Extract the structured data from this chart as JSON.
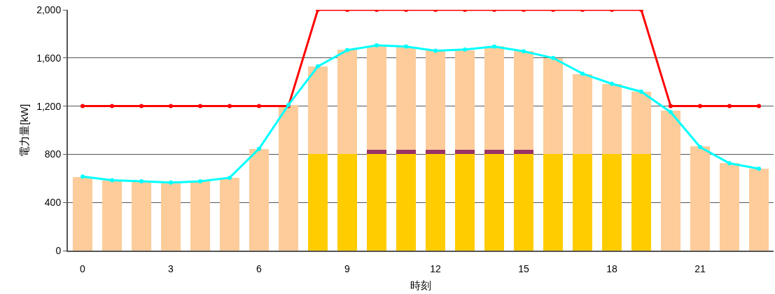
{
  "chart_data": {
    "type": "bar",
    "stacked": true,
    "xlabel": "時刻",
    "ylabel": "電力量[kW]",
    "categories": [
      "0",
      null,
      null,
      "3",
      null,
      null,
      "6",
      null,
      null,
      "9",
      null,
      null,
      "12",
      null,
      null,
      "15",
      null,
      null,
      "18",
      null,
      null,
      "21",
      null,
      null
    ],
    "series": [
      {
        "color": "#ffcc00",
        "values": [
          null,
          null,
          null,
          null,
          null,
          null,
          null,
          null,
          800,
          800,
          800,
          800,
          800,
          800,
          800,
          800,
          800,
          800,
          800,
          800,
          null,
          null,
          null,
          null
        ]
      },
      {
        "color": "#993366",
        "values": [
          null,
          null,
          null,
          null,
          null,
          null,
          null,
          null,
          null,
          null,
          35,
          35,
          35,
          35,
          35,
          35,
          null,
          null,
          null,
          null,
          null,
          null,
          null,
          null
        ]
      },
      {
        "color": "#fdcc9a",
        "values": [
          610,
          583,
          575,
          565,
          575,
          605,
          845,
          1210,
          730,
          867,
          865,
          855,
          825,
          830,
          860,
          820,
          800,
          665,
          585,
          520,
          1160,
          865,
          725,
          680
        ]
      },
      {
        "type": "line",
        "color": "#ff0000",
        "values": [
          1200,
          1200,
          1200,
          1200,
          1200,
          1200,
          1200,
          1200,
          2000,
          2000,
          2000,
          2000,
          2000,
          2000,
          2000,
          2000,
          2000,
          2000,
          2000,
          2000,
          1200,
          1200,
          1200,
          1200
        ]
      },
      {
        "type": "line",
        "color": "#00ffff",
        "values": [
          615,
          585,
          575,
          565,
          575,
          605,
          845,
          1210,
          1530,
          1665,
          1705,
          1695,
          1660,
          1670,
          1695,
          1655,
          1600,
          1470,
          1385,
          1320,
          1150,
          860,
          725,
          680
        ]
      }
    ],
    "ylim": [
      0,
      2000
    ],
    "yticks": [
      0,
      400,
      800,
      {
        "value": 1200,
        "label": "1,200"
      },
      {
        "value": 1600,
        "label": "1,600"
      },
      {
        "value": 2000,
        "label": "2,000"
      }
    ],
    "grid": "y",
    "marker": "circle",
    "line_style": "solid"
  }
}
